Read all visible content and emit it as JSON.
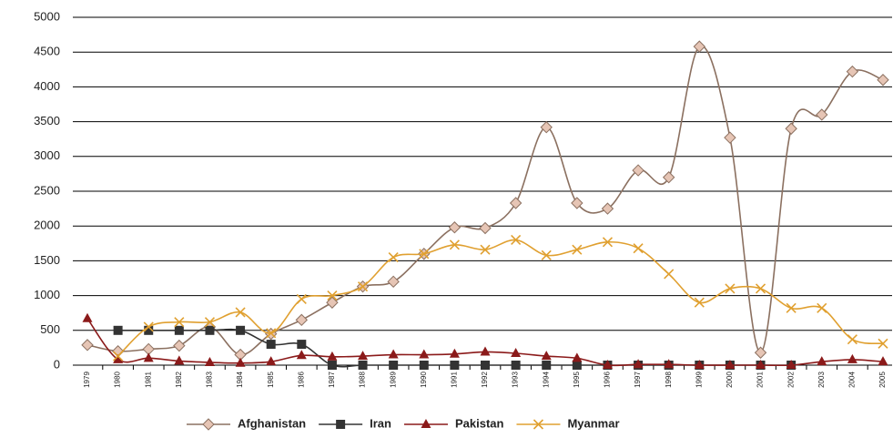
{
  "chart_data": {
    "type": "line",
    "categories": [
      "1979",
      "1980",
      "1981",
      "1982",
      "1983",
      "1984",
      "1985",
      "1986",
      "1987",
      "1988",
      "1989",
      "1990",
      "1991",
      "1992",
      "1993",
      "1994",
      "1995",
      "1996",
      "1997",
      "1998",
      "1999",
      "2000",
      "2001",
      "2002",
      "2003",
      "2004",
      "2005"
    ],
    "series": [
      {
        "name": "Afghanistan",
        "color": "#8b7060",
        "marker": "diamond",
        "marker_fill": "#e6c5b5",
        "values": [
          290,
          200,
          230,
          280,
          550,
          150,
          450,
          650,
          900,
          1130,
          1200,
          1600,
          1980,
          1970,
          2330,
          3420,
          2330,
          2250,
          2800,
          2700,
          4580,
          3270,
          180,
          3400,
          3600,
          4220,
          4100
        ]
      },
      {
        "name": "Iran",
        "color": "#333333",
        "marker": "square",
        "marker_fill": "#333333",
        "values": [
          null,
          500,
          500,
          500,
          500,
          500,
          300,
          300,
          0,
          0,
          0,
          0,
          0,
          0,
          0,
          0,
          0,
          0,
          0,
          0,
          0,
          0,
          0,
          0,
          null,
          null,
          null
        ]
      },
      {
        "name": "Pakistan",
        "color": "#8b1a1a",
        "marker": "triangle",
        "marker_fill": "#8b1a1a",
        "values": [
          670,
          80,
          100,
          60,
          40,
          30,
          50,
          140,
          120,
          130,
          150,
          150,
          160,
          190,
          170,
          130,
          100,
          0,
          10,
          10,
          0,
          0,
          0,
          0,
          50,
          80,
          50
        ]
      },
      {
        "name": "Myanmar",
        "color": "#e0a030",
        "marker": "x",
        "marker_fill": "#e0a030",
        "values": [
          null,
          130,
          550,
          620,
          620,
          760,
          460,
          950,
          1000,
          1130,
          1550,
          1600,
          1730,
          1660,
          1800,
          1580,
          1660,
          1770,
          1680,
          1310,
          900,
          1100,
          1100,
          820,
          820,
          370,
          310
        ]
      }
    ],
    "ylim": [
      0,
      5000
    ],
    "yticks": [
      0,
      500,
      1000,
      1500,
      2000,
      2500,
      3000,
      3500,
      4000,
      4500,
      5000
    ],
    "grid": true,
    "smooth": true,
    "legend": "bottom"
  }
}
